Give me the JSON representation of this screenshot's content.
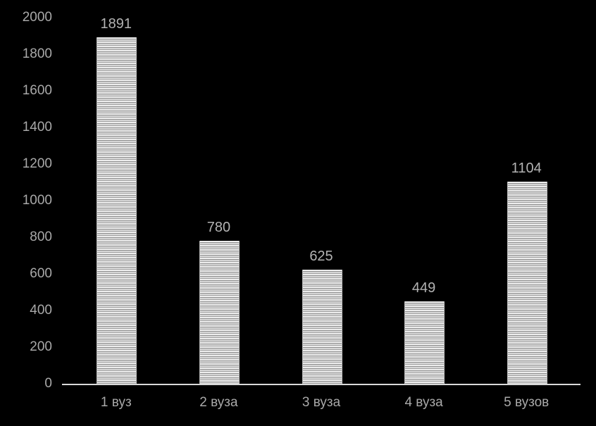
{
  "chart_data": {
    "type": "bar",
    "categories": [
      "1 вуз",
      "2 вуза",
      "3 вуза",
      "4 вуза",
      "5 вузов"
    ],
    "values": [
      1891,
      780,
      625,
      449,
      1104
    ],
    "value_labels": [
      "1891",
      "780",
      "625",
      "449",
      "1104"
    ],
    "ytick_labels": [
      "0",
      "200",
      "400",
      "600",
      "800",
      "1000",
      "1200",
      "1400",
      "1600",
      "1800",
      "2000"
    ],
    "title": "",
    "xlabel": "",
    "ylabel": "",
    "ylim": [
      0,
      2000
    ],
    "ytick_step": 200,
    "grid": false,
    "legend": false,
    "colors": {
      "background": "#000000",
      "axis_line": "#d9d9d9",
      "tick_text": "#a9a9a9",
      "value_text": "#b3b3b3",
      "bar_fill_light": "#ededed",
      "bar_fill_dark": "#8f8f8f"
    }
  }
}
